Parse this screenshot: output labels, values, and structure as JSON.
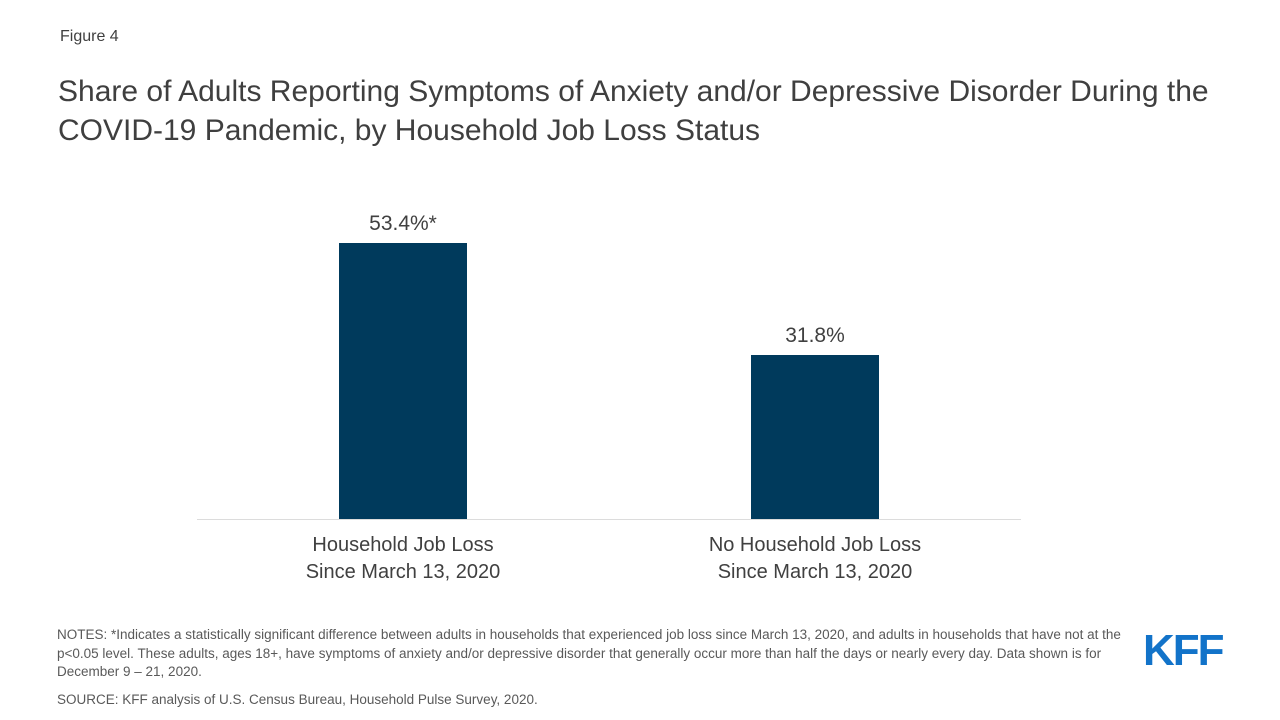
{
  "figure_label": "Figure 4",
  "title": "Share of Adults Reporting Symptoms of Anxiety and/or Depressive Disorder During the COVID-19 Pandemic, by Household Job Loss Status",
  "chart_data": {
    "type": "bar",
    "categories": [
      "Household Job Loss\nSince March 13, 2020",
      "No Household Job Loss\nSince March 13, 2020"
    ],
    "values": [
      53.4,
      31.8
    ],
    "value_labels": [
      "53.4%*",
      "31.8%"
    ],
    "ylim": [
      0,
      60
    ],
    "grid": false,
    "legend": "none",
    "xlabel": "",
    "ylabel": "",
    "bar_color": "#003a5c",
    "axis_line_color": "#dcdcdc"
  },
  "notes": "NOTES: *Indicates a statistically significant difference between adults in households that experienced job loss since March 13, 2020, and adults in households that have not at the p<0.05 level. These adults, ages 18+, have symptoms of anxiety and/or depressive disorder that generally occur more than half the days or nearly every day. Data shown is for December 9 – 21, 2020.",
  "source": "SOURCE: KFF analysis of U.S. Census Bureau, Household Pulse Survey, 2020.",
  "logo": {
    "text": "KFF",
    "color": "#1273c9"
  },
  "colors": {
    "title_text": "#3f3f3f",
    "notes_text": "#595959"
  }
}
